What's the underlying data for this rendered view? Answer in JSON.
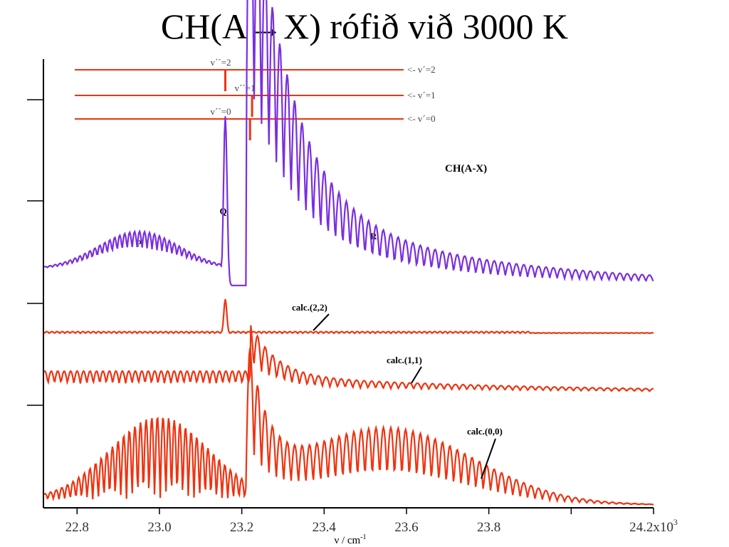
{
  "title": "CH(A→X) rófið við 3000 K",
  "chart_data": {
    "type": "line",
    "title": "CH(A→X) rófið við 3000 K",
    "xlabel": "ν / cm",
    "xlabel_sup": "-1",
    "x_multiplier": "x10",
    "x_multiplier_sup": "3",
    "xlim": [
      22.72,
      24.2
    ],
    "x_ticks": [
      "22.8",
      "23.0",
      "23.2",
      "23.4",
      "23.6",
      "23.8",
      "24.2"
    ],
    "x_tick_values": [
      22.8,
      23.0,
      23.2,
      23.4,
      23.6,
      23.8,
      24.2
    ],
    "inner_label": "CH(A-X)",
    "branch_labels": [
      {
        "text": "P",
        "x": 22.95
      },
      {
        "text": "Q",
        "x": 23.155
      },
      {
        "text": "R",
        "x": 23.52
      }
    ],
    "levels": [
      {
        "upper": "<- v´=2",
        "lower": "v´´=2",
        "x": 23.16
      },
      {
        "upper": "<- v´=1",
        "lower": "v´´=1",
        "x": 23.225
      },
      {
        "upper": "<- v´=0",
        "lower": "v´´=0",
        "x": 23.22
      }
    ],
    "series": [
      {
        "name": "",
        "color": "#7a2ee0",
        "role": "observed"
      },
      {
        "name": "calc.(2,2)",
        "color": "#ee3311",
        "role": "calc22"
      },
      {
        "name": "calc.(1,1)",
        "color": "#ee3311",
        "role": "calc11"
      },
      {
        "name": "calc.(0,0)",
        "color": "#ee3311",
        "role": "calc00"
      }
    ]
  }
}
